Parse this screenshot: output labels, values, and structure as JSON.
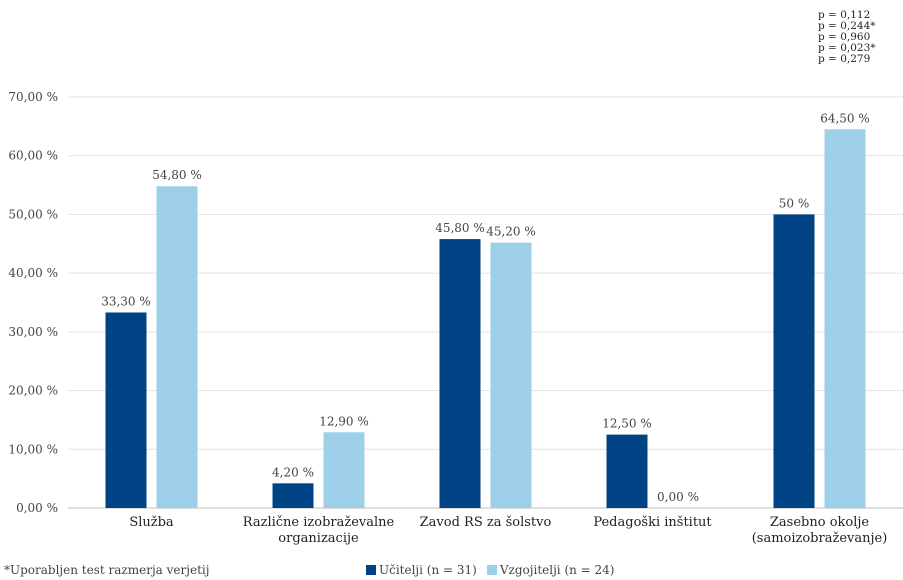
{
  "chart_data": {
    "type": "bar",
    "categories": [
      "Služba",
      "Različne izobraževalne organizacije",
      "Zavod RS za šolstvo",
      "Pedagoški inštitut",
      "Zasebno okolje (samoizobraževanje)"
    ],
    "category_lines": [
      [
        "Služba"
      ],
      [
        "Različne izobraževalne",
        "organizacije"
      ],
      [
        "Zavod RS za šolstvo"
      ],
      [
        "Pedagoški inštitut"
      ],
      [
        "Zasebno okolje",
        "(samoizobraževanje)"
      ]
    ],
    "series": [
      {
        "name": "Učitelji (n = 31)",
        "color": "#004384",
        "values": [
          33.3,
          4.2,
          45.8,
          12.5,
          50
        ],
        "labels": [
          "33,30 %",
          "4,20 %",
          "45,80 %",
          "12,50 %",
          "50 %"
        ]
      },
      {
        "name": "Vzgojitelji (n = 24)",
        "color": "#9ecfe8",
        "values": [
          54.8,
          12.9,
          45.2,
          0,
          64.5
        ],
        "labels": [
          "54,80 %",
          "12,90 %",
          "45,20 %",
          "",
          "64,50 %"
        ]
      }
    ],
    "ylim": [
      0,
      70
    ],
    "yticks": [
      0,
      10,
      20,
      30,
      40,
      50,
      60,
      70
    ],
    "ytick_labels": [
      "0,00 %",
      "10,00 %",
      "20,00 %",
      "30,00 %",
      "40,00 %",
      "50,00 %",
      "60,00 %",
      "70,00 %"
    ],
    "grid": true,
    "legend_position": "bottom",
    "extra_labels": {
      "zero_bar_label": "0,00 %"
    }
  },
  "pvalues": [
    "p = 0,112",
    "p = 0,244*",
    "p = 0,960",
    "p = 0,023*",
    "p = 0,279"
  ],
  "footnote": "*Uporabljen test razmerja verjetij"
}
